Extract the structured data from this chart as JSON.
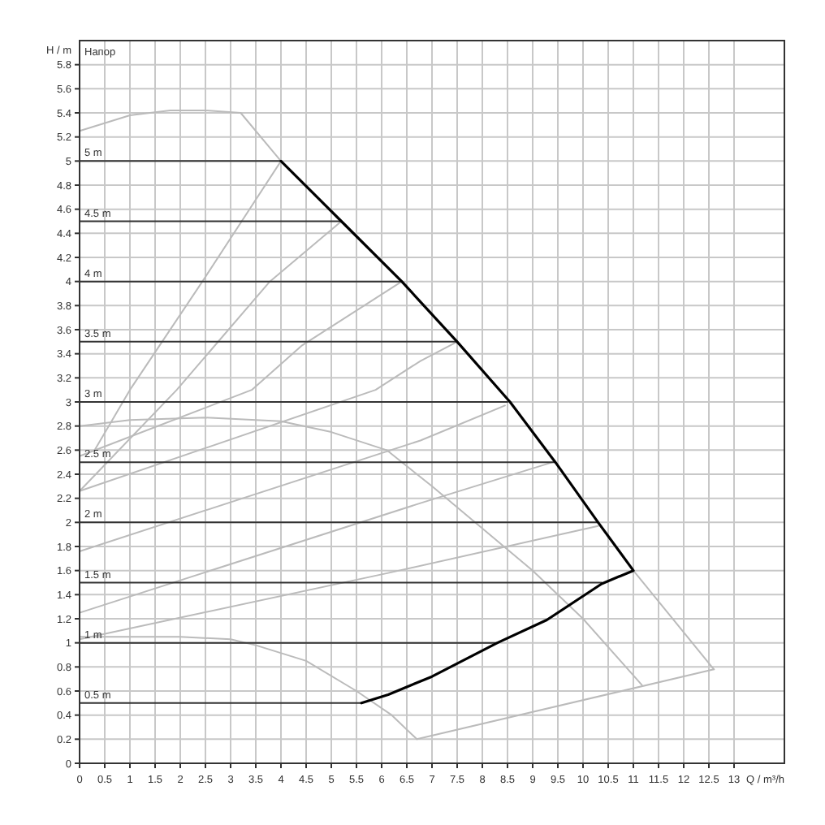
{
  "chart_data": {
    "type": "line",
    "xlabel": "Q / m³/h",
    "ylabel": "H / m",
    "annotations": [
      "Напор"
    ],
    "xlim": [
      0,
      14
    ],
    "ylim": [
      0,
      6
    ],
    "xticks": [
      0,
      0.5,
      1,
      1.5,
      2,
      2.5,
      3,
      3.5,
      4,
      4.5,
      5,
      5.5,
      6,
      6.5,
      7,
      7.5,
      8,
      8.5,
      9,
      9.5,
      10,
      10.5,
      11,
      11.5,
      12,
      12.5,
      13
    ],
    "yticks": [
      0,
      0.2,
      0.4,
      0.6,
      0.8,
      1,
      1.2,
      1.4,
      1.6,
      1.8,
      2,
      2.2,
      2.4,
      2.6,
      2.8,
      3,
      3.2,
      3.4,
      3.6,
      3.8,
      4,
      4.2,
      4.4,
      4.6,
      4.8,
      5,
      5.2,
      5.4,
      5.6,
      5.8
    ],
    "grid": true,
    "legend": "left",
    "marker": "none",
    "line_style": "solid",
    "series": [
      {
        "color": "#bbbbbb",
        "x": [
          0,
          1,
          1.8,
          2.5,
          3.2,
          4
        ],
        "values": [
          5.25,
          5.38,
          5.42,
          5.42,
          5.4,
          5
        ]
      },
      {
        "color": "#bbbbbb",
        "x": [
          11,
          12.6
        ],
        "values": [
          1.6,
          0.78
        ]
      },
      {
        "color": "#bbbbbb",
        "x": [
          0,
          1,
          2.5,
          4,
          5,
          6.1,
          7,
          8,
          9,
          10,
          11.17
        ],
        "values": [
          2.8,
          2.85,
          2.87,
          2.84,
          2.75,
          2.6,
          2.3,
          1.95,
          1.6,
          1.2,
          0.65
        ]
      },
      {
        "color": "#bbbbbb",
        "x": [
          0,
          2,
          3,
          3.5,
          4.5,
          5.5,
          6.2,
          6.7
        ],
        "values": [
          1.05,
          1.05,
          1.03,
          0.98,
          0.85,
          0.6,
          0.4,
          0.2
        ]
      },
      {
        "color": "#bbbbbb",
        "x": [
          6.7,
          12.6
        ],
        "values": [
          0.2,
          0.78
        ]
      },
      {
        "color": "#bbbbbb",
        "x": [
          0.3,
          1,
          2.44,
          4
        ],
        "values": [
          2.6,
          3.1,
          4,
          5
        ]
      },
      {
        "color": "#bbbbbb",
        "x": [
          0,
          1.93,
          3.78,
          5.2
        ],
        "values": [
          2.26,
          3.1,
          4,
          4.5
        ]
      },
      {
        "color": "#bbbbbb",
        "x": [
          0,
          3.42,
          4.42,
          6.4
        ],
        "values": [
          2.55,
          3.1,
          3.47,
          4
        ]
      },
      {
        "color": "#bbbbbb",
        "x": [
          0,
          5.88,
          6.77,
          7.5
        ],
        "values": [
          2.26,
          3.1,
          3.34,
          3.5
        ]
      },
      {
        "color": "#bbbbbb",
        "x": [
          0,
          6.77,
          8.45
        ],
        "values": [
          1.76,
          2.68,
          2.97
        ]
      },
      {
        "color": "#bbbbbb",
        "x": [
          0,
          6.77,
          9.4
        ],
        "values": [
          1.25,
          2.16,
          2.5
        ]
      },
      {
        "color": "#bbbbbb",
        "x": [
          0,
          6.13,
          10.3
        ],
        "values": [
          1.03,
          1.58,
          1.97
        ]
      },
      {
        "name": "5 m",
        "color": "#333333",
        "x": [
          0,
          4
        ],
        "values": [
          5,
          5
        ]
      },
      {
        "name": "4.5 m",
        "color": "#333333",
        "x": [
          0,
          5.2
        ],
        "values": [
          4.5,
          4.5
        ]
      },
      {
        "name": "4 m",
        "color": "#333333",
        "x": [
          0,
          6.4
        ],
        "values": [
          4,
          4
        ]
      },
      {
        "name": "3.5 m",
        "color": "#333333",
        "x": [
          0,
          7.5
        ],
        "values": [
          3.5,
          3.5
        ]
      },
      {
        "name": "3 m",
        "color": "#333333",
        "x": [
          0,
          8.5
        ],
        "values": [
          3,
          3
        ]
      },
      {
        "name": "2.5 m",
        "color": "#333333",
        "x": [
          0,
          9.45
        ],
        "values": [
          2.5,
          2.5
        ]
      },
      {
        "name": "2 m",
        "color": "#333333",
        "x": [
          0,
          10.3
        ],
        "values": [
          2,
          2
        ]
      },
      {
        "name": "1.5 m",
        "color": "#333333",
        "x": [
          0,
          10.37
        ],
        "values": [
          1.5,
          1.5
        ]
      },
      {
        "name": "1 m",
        "color": "#333333",
        "x": [
          0,
          8.3
        ],
        "values": [
          1,
          1
        ]
      },
      {
        "name": "0.5 m",
        "color": "#333333",
        "x": [
          0,
          5.6
        ],
        "values": [
          0.5,
          0.5
        ]
      },
      {
        "color": "#000000",
        "x": [
          4,
          5.2,
          6.4,
          7.5,
          8.55,
          9.45,
          10.3,
          11,
          10.37,
          9.28,
          8.3,
          7,
          6.13,
          5.6
        ],
        "values": [
          5,
          4.5,
          4,
          3.5,
          3,
          2.5,
          2,
          1.6,
          1.49,
          1.19,
          1,
          0.72,
          0.57,
          0.5
        ]
      }
    ]
  }
}
